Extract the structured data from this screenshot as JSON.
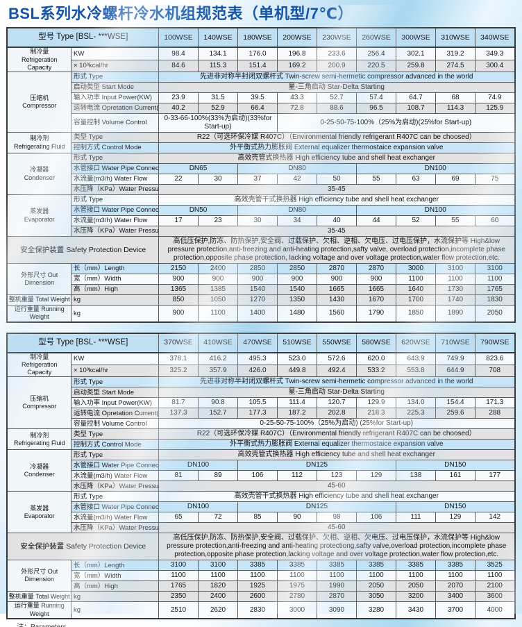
{
  "title": "BSL系列水冷螺杆冷水机组规范表（单机型/7℃）",
  "footnote": "注：Parameters",
  "colors": {
    "title_blue": "#1553a8",
    "row_blue": "#c8e5f7",
    "row_gray": "#e2e2e2",
    "header_blue": "#bfdff3"
  },
  "tables": [
    {
      "name": "spec-table-1",
      "model_header": "型号 Type [BSL- ***WSE]",
      "models": [
        "100WSE",
        "140WSE",
        "180WSE",
        "200WSE",
        "230WSE",
        "260WSE",
        "300WSE",
        "310WSE",
        "340WSE"
      ],
      "rows": [
        {
          "section": {
            "label": "制冷量\nRefrigeration Capacity",
            "rowspan": 2
          },
          "label": "KW",
          "values": [
            "98.4",
            "134.1",
            "176.0",
            "196.8",
            "233.6",
            "256.4",
            "302.1",
            "319.2",
            "349.3"
          ],
          "bg": "white"
        },
        {
          "label": "× 10³kcal/hr",
          "values": [
            "84.6",
            "115.3",
            "151.4",
            "169.2",
            "200.9",
            "220.5",
            "259.8",
            "274.5",
            "300.4"
          ],
          "bg": "gray"
        },
        {
          "section": {
            "label": "压缩机\nCompressor",
            "rowspan": 5
          },
          "label": "形式 Type",
          "merged": [
            {
              "text": "先进非对称半封闭双螺杆式 Twin-screw semi-hermetic compressor advanced in the world",
              "span": 9
            }
          ],
          "bg": "blue"
        },
        {
          "label": "启动类型 Start Mode",
          "merged": [
            {
              "text": "星-三角启动 Star-Delta Starting",
              "span": 9
            }
          ],
          "bg": "gray"
        },
        {
          "label": "输入功率 Input Power(KW)",
          "values": [
            "23.9",
            "31.5",
            "39.5",
            "43.3",
            "52.7",
            "57.4",
            "64.7",
            "68",
            "74.9"
          ],
          "bg": "white"
        },
        {
          "label": "运转电流 Opretation Current(A)",
          "values": [
            "40.2",
            "52.9",
            "66.4",
            "72.8",
            "88.6",
            "96.5",
            "108.7",
            "114.3",
            "125.9"
          ],
          "bg": "gray"
        },
        {
          "label": "容量控制 Volume Control",
          "merged": [
            {
              "text": "0-33-66-100%(33%为启动)(33%for Start-up)",
              "span": 3
            },
            {
              "text": "0-25-50-75-100%（25%为启动)(25%for Start-up)",
              "span": 6
            }
          ],
          "bg": "white",
          "tall": true
        },
        {
          "section": {
            "label": "制冷剂\nRefrigerating Fluid",
            "rowspan": 2
          },
          "label": "类型 Type",
          "merged": [
            {
              "text": "R22（可选环保冷媒 R407C）（Environmental friendly refrigerant R407C can be choosed）",
              "span": 9
            }
          ],
          "bg": "gray"
        },
        {
          "label": "控制方式 Control Mode",
          "merged": [
            {
              "text": "外平衡式热力膨胀阀 External equalizer thermostaice expansion valve",
              "span": 9
            }
          ],
          "bg": "blue"
        },
        {
          "section": {
            "label": "冷凝器\nCondenser",
            "rowspan": 4
          },
          "label": "形式 Type",
          "merged": [
            {
              "text": "高效壳管式换热器 High efficiency tube and shell heat exchanger",
              "span": 9
            }
          ],
          "bg": "gray"
        },
        {
          "label": "水管接口 Water Pipe Connection",
          "merged": [
            {
              "text": "DN65",
              "span": 2
            },
            {
              "text": "DN80",
              "span": 3
            },
            {
              "text": "DN100",
              "span": 4
            }
          ],
          "bg": "blue"
        },
        {
          "label": "水流量(m3/h) Water Flow",
          "values": [
            "22",
            "30",
            "37",
            "42",
            "50",
            "55",
            "63",
            "69",
            "75"
          ],
          "bg": "white"
        },
        {
          "label": "水压降（KPa）Water Pressure Drop",
          "merged": [
            {
              "text": "35-45",
              "span": 9
            }
          ],
          "bg": "gray"
        },
        {
          "section": {
            "label": "蒸发器\nEvaporator",
            "rowspan": 4
          },
          "label": "形式 Type",
          "merged": [
            {
              "text": "高效壳管干式换热器 High efficiency tube and shell heat exchanger",
              "span": 9
            }
          ],
          "bg": "white"
        },
        {
          "label": "水管接口 Water Pipe Connection",
          "merged": [
            {
              "text": "DN50",
              "span": 2
            },
            {
              "text": "DN80",
              "span": 3
            },
            {
              "text": "DN100",
              "span": 4
            }
          ],
          "bg": "blue"
        },
        {
          "label": "水流量(m3/h) Water Flow",
          "values": [
            "17",
            "23",
            "30",
            "34",
            "40",
            "44",
            "52",
            "55",
            "60"
          ],
          "bg": "white"
        },
        {
          "label": "水压降（KPa）Water Pressure Drop",
          "merged": [
            {
              "text": "35-45",
              "span": 9
            }
          ],
          "bg": "gray"
        },
        {
          "wide": "安全保护装置 Safety Protection Device",
          "merged": [
            {
              "text": "高低压保护,防冻、防热保护,安全阀、过载保护、欠相、逆相、欠电压、过电压保护，水流保护等 High&low pressure protection,anti-freezing and anti-heating protection,safty valve, overload protection,incomplete phase protection,opposite phase protection, lacking voltage and over voltage protection,water flow protection,etc.",
              "span": 9
            }
          ],
          "bg": "gray",
          "tall": true
        },
        {
          "section": {
            "label": "外形尺寸 Out\nDimension",
            "rowspan": 3
          },
          "label": "长（mm）Length",
          "values": [
            "2150",
            "2400",
            "2850",
            "2850",
            "2870",
            "2870",
            "3000",
            "3100",
            "3100"
          ],
          "bg": "blue"
        },
        {
          "label": "宽（mm）Width",
          "values": [
            "900",
            "900",
            "900",
            "900",
            "900",
            "900",
            "1100",
            "1100",
            "1100"
          ],
          "bg": "white"
        },
        {
          "label": "高（mm）High",
          "values": [
            "1365",
            "1385",
            "1540",
            "1540",
            "1665",
            "1665",
            "1640",
            "1730",
            "1765"
          ],
          "bg": "gray"
        },
        {
          "section": {
            "label": "整机重量 Total Weight",
            "rowspan": 1
          },
          "label": "kg",
          "values": [
            "850",
            "1050",
            "1270",
            "1350",
            "1430",
            "1670",
            "1700",
            "1740",
            "1830"
          ],
          "bg": "gray"
        },
        {
          "section": {
            "label": "运行重量 Running Weight",
            "rowspan": 1
          },
          "label": "kg",
          "values": [
            "900",
            "1100",
            "1400",
            "1480",
            "1560",
            "1790",
            "1850",
            "1890",
            "2050"
          ],
          "bg": "white"
        }
      ]
    },
    {
      "name": "spec-table-2",
      "model_header": "型号 Type [BSL- ***WSE]",
      "models": [
        "370WSE",
        "410WSE",
        "470WSE",
        "510WSE",
        "550WSE",
        "580WSE",
        "620WSE",
        "710WSE",
        "790WSE"
      ],
      "rows": [
        {
          "section": {
            "label": "制冷量\nRefrigeration Capacity",
            "rowspan": 2
          },
          "label": "KW",
          "values": [
            "378.1",
            "416.2",
            "495.3",
            "523.0",
            "572.6",
            "620.0",
            "643.9",
            "749.9",
            "823.6"
          ],
          "bg": "white"
        },
        {
          "label": "× 10³kcal/hr",
          "values": [
            "325.2",
            "357.9",
            "426.0",
            "449.8",
            "492.4",
            "533.2",
            "553.8",
            "644.9",
            "708"
          ],
          "bg": "gray"
        },
        {
          "section": {
            "label": "压缩机\nCompressor",
            "rowspan": 5
          },
          "label": "形式 Type",
          "merged": [
            {
              "text": "先进非对称半封闭双螺杆式 Twin-screw semi-hermetic compressor advanced in the world",
              "span": 9
            }
          ],
          "bg": "blue"
        },
        {
          "label": "启动类型 Start Mode",
          "merged": [
            {
              "text": "星-三角启动 Star-Delta Starting",
              "span": 9
            }
          ],
          "bg": "gray"
        },
        {
          "label": "输入功率 Input Power(KW)",
          "values": [
            "81.7",
            "90.8",
            "105.5",
            "111.4",
            "120.7",
            "129.9",
            "134.0",
            "154.4",
            "171.3"
          ],
          "bg": "white"
        },
        {
          "label": "运转电流 Opretation Current(A)",
          "values": [
            "137.3",
            "152.7",
            "177.3",
            "187.2",
            "202.8",
            "218.3",
            "225.3",
            "259.6",
            "288"
          ],
          "bg": "gray"
        },
        {
          "label": "容量控制 Volume Control",
          "merged": [
            {
              "text": "0-25-50-75-100%（25%为启动) (25%for Start-up)",
              "span": 9
            }
          ],
          "bg": "white"
        },
        {
          "section": {
            "label": "制冷剂\nRefrigerating Fluid",
            "rowspan": 2
          },
          "label": "类型 Type",
          "merged": [
            {
              "text": "R22（可选环保冷媒 R407C）（Environmental friendly refrigerant R407C can be choosed）",
              "span": 9
            }
          ],
          "bg": "gray"
        },
        {
          "label": "控制方式 Control Mode",
          "merged": [
            {
              "text": "外平衡式热力膨胀阀 External equalizer thermostaice expansion valve",
              "span": 9
            }
          ],
          "bg": "blue"
        },
        {
          "section": {
            "label": "冷凝器\nCondenser",
            "rowspan": 4
          },
          "label": "形式 Type",
          "merged": [
            {
              "text": "高效壳管式换热器 High efficiency tube and shell heat exchanger",
              "span": 9
            }
          ],
          "bg": "gray"
        },
        {
          "label": "水管接口 Water Pipe Connection",
          "merged": [
            {
              "text": "DN100",
              "span": 2
            },
            {
              "text": "DN125",
              "span": 4
            },
            {
              "text": "DN150",
              "span": 3
            }
          ],
          "bg": "blue"
        },
        {
          "label": "水流量(m3/h) Water Flow",
          "values": [
            "81",
            "89",
            "106",
            "112",
            "123",
            "129",
            "138",
            "161",
            "177"
          ],
          "bg": "white"
        },
        {
          "label": "水压降（KPa）Water Pressure Drop",
          "merged": [
            {
              "text": "45-60",
              "span": 9
            }
          ],
          "bg": "gray"
        },
        {
          "section": {
            "label": "蒸发器\nEvaporator",
            "rowspan": 4
          },
          "label": "形式 Type",
          "merged": [
            {
              "text": "高效壳管干式换热器 High efficiency tube and shell heat exchanger",
              "span": 9
            }
          ],
          "bg": "white"
        },
        {
          "label": "水管接口 Water Pipe Connection",
          "merged": [
            {
              "text": "DN100",
              "span": 2
            },
            {
              "text": "DN125",
              "span": 4
            },
            {
              "text": "DN150",
              "span": 3
            }
          ],
          "bg": "blue"
        },
        {
          "label": "水流量(m3/h) Water Flow",
          "values": [
            "65",
            "72",
            "85",
            "90",
            "98",
            "106",
            "111",
            "129",
            "142"
          ],
          "bg": "white"
        },
        {
          "label": "水压降（KPa）Water Pressure Drop",
          "merged": [
            {
              "text": "45-60",
              "span": 9
            }
          ],
          "bg": "gray"
        },
        {
          "wide": "安全保护装置 Safety Protection Device",
          "merged": [
            {
              "text": "高低压保护,防冻、防热保护,安全阀、过载保护、欠相、逆相、欠电压、过电压保护，水流保护等 High&low pressure protection,anti-freezing and anti-heating protectiong,safty valve,overload protection,incomplete phase protection,opposite phase protection,lacking voltage and over voltage protection,water flow protection,etc.",
              "span": 9
            }
          ],
          "bg": "gray",
          "tall": true
        },
        {
          "section": {
            "label": "外形尺寸 Out\nDimension",
            "rowspan": 3
          },
          "label": "长（mm）Length",
          "values": [
            "3100",
            "3100",
            "3385",
            "3385",
            "3385",
            "3385",
            "3385",
            "3385",
            "3525"
          ],
          "bg": "blue"
        },
        {
          "label": "宽（mm）Width",
          "values": [
            "1100",
            "1100",
            "1100",
            "1100",
            "1100",
            "1100",
            "1100",
            "1100",
            "1100"
          ],
          "bg": "white"
        },
        {
          "label": "高（mm）High",
          "values": [
            "1765",
            "1820",
            "1925",
            "1975",
            "1990",
            "2050",
            "2050",
            "2070",
            "2100"
          ],
          "bg": "gray"
        },
        {
          "section": {
            "label": "整机重量 Total Weight",
            "rowspan": 1
          },
          "label": "kg",
          "values": [
            "2350",
            "2400",
            "2600",
            "2780",
            "2870",
            "3050",
            "3200",
            "3400",
            "3600"
          ],
          "bg": "gray"
        },
        {
          "section": {
            "label": "运行重量 Running Weight",
            "rowspan": 1
          },
          "label": "kg",
          "values": [
            "2510",
            "2620",
            "2830",
            "3000",
            "3090",
            "3280",
            "3430",
            "3700",
            "4000"
          ],
          "bg": "white"
        }
      ]
    }
  ]
}
